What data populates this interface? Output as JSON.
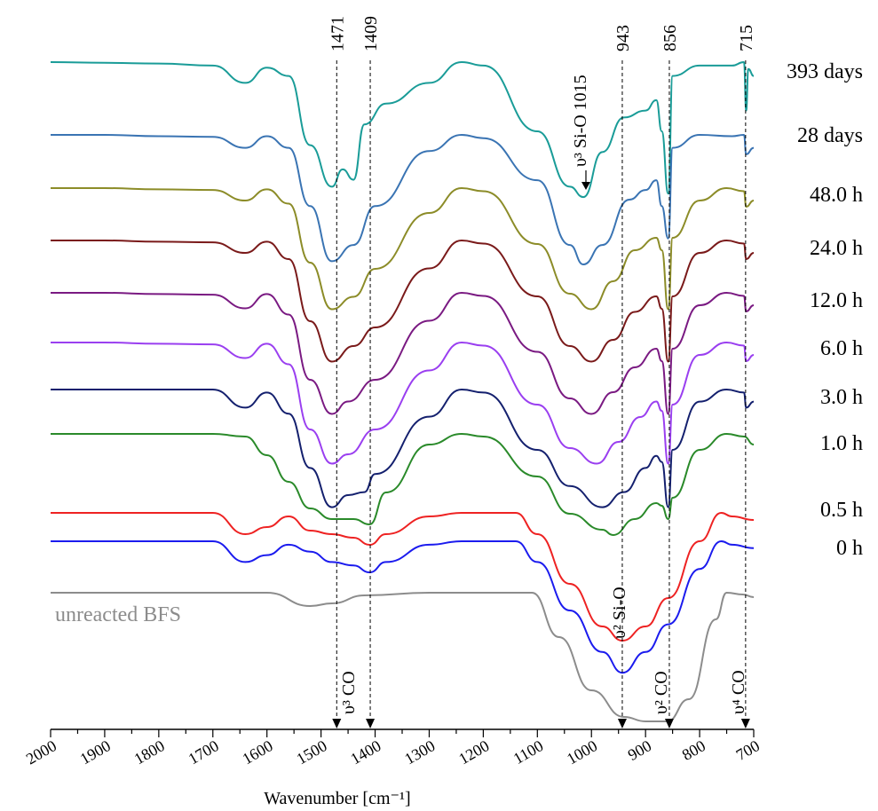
{
  "chart_data": {
    "type": "line",
    "xlabel": "Wavenumber [cm⁻¹]",
    "ylabel": "",
    "xlim": [
      2000,
      700
    ],
    "x_reversed": true,
    "x_ticks": [
      "2000",
      "1900",
      "1800",
      "1700",
      "1600",
      "1500",
      "1400",
      "1300",
      "1200",
      "1100",
      "1000",
      "900",
      "800",
      "700"
    ],
    "y_axis_shown": false,
    "series": [
      {
        "name": "393 days",
        "color": "#1a9c98",
        "points": [
          [
            2000,
            0.0
          ],
          [
            1900,
            0.01
          ],
          [
            1800,
            0.02
          ],
          [
            1700,
            0.05
          ],
          [
            1640,
            0.3
          ],
          [
            1600,
            0.08
          ],
          [
            1560,
            0.2
          ],
          [
            1520,
            1.2
          ],
          [
            1480,
            1.8
          ],
          [
            1460,
            1.55
          ],
          [
            1440,
            1.7
          ],
          [
            1420,
            0.9
          ],
          [
            1380,
            0.6
          ],
          [
            1300,
            0.3
          ],
          [
            1240,
            0.0
          ],
          [
            1200,
            0.05
          ],
          [
            1100,
            1.0
          ],
          [
            1040,
            1.8
          ],
          [
            1015,
            1.95
          ],
          [
            980,
            1.3
          ],
          [
            940,
            0.8
          ],
          [
            900,
            0.7
          ],
          [
            880,
            0.55
          ],
          [
            870,
            1.0
          ],
          [
            858,
            1.9
          ],
          [
            850,
            0.2
          ],
          [
            800,
            0.05
          ],
          [
            740,
            0.05
          ],
          [
            718,
            0.0
          ],
          [
            714,
            0.7
          ],
          [
            710,
            0.1
          ],
          [
            700,
            0.2
          ]
        ]
      },
      {
        "name": "28 days",
        "color": "#3a74b3",
        "points": [
          [
            2000,
            0.0
          ],
          [
            1900,
            0.0
          ],
          [
            1800,
            0.02
          ],
          [
            1700,
            0.03
          ],
          [
            1640,
            0.2
          ],
          [
            1600,
            0.02
          ],
          [
            1560,
            0.2
          ],
          [
            1520,
            1.1
          ],
          [
            1480,
            1.95
          ],
          [
            1440,
            1.7
          ],
          [
            1400,
            1.1
          ],
          [
            1300,
            0.25
          ],
          [
            1240,
            0.0
          ],
          [
            1200,
            0.05
          ],
          [
            1100,
            0.7
          ],
          [
            1040,
            1.7
          ],
          [
            1015,
            2.0
          ],
          [
            980,
            1.7
          ],
          [
            930,
            1.0
          ],
          [
            900,
            0.85
          ],
          [
            880,
            0.7
          ],
          [
            870,
            1.1
          ],
          [
            858,
            1.6
          ],
          [
            850,
            0.2
          ],
          [
            800,
            0.0
          ],
          [
            740,
            0.02
          ],
          [
            718,
            0.0
          ],
          [
            714,
            0.3
          ],
          [
            700,
            0.2
          ]
        ]
      },
      {
        "name": "48.0 h",
        "color": "#8c8c28",
        "points": [
          [
            2000,
            0.0
          ],
          [
            1900,
            0.0
          ],
          [
            1800,
            0.02
          ],
          [
            1700,
            0.03
          ],
          [
            1640,
            0.2
          ],
          [
            1600,
            0.02
          ],
          [
            1560,
            0.25
          ],
          [
            1520,
            1.2
          ],
          [
            1480,
            1.95
          ],
          [
            1440,
            1.75
          ],
          [
            1400,
            1.3
          ],
          [
            1300,
            0.4
          ],
          [
            1240,
            0.0
          ],
          [
            1200,
            0.05
          ],
          [
            1100,
            0.9
          ],
          [
            1040,
            1.7
          ],
          [
            1000,
            1.95
          ],
          [
            960,
            1.5
          ],
          [
            920,
            1.0
          ],
          [
            880,
            0.8
          ],
          [
            870,
            1.0
          ],
          [
            858,
            1.95
          ],
          [
            850,
            0.8
          ],
          [
            800,
            0.2
          ],
          [
            750,
            0.0
          ],
          [
            718,
            0.05
          ],
          [
            714,
            0.3
          ],
          [
            700,
            0.2
          ]
        ]
      },
      {
        "name": "24.0 h",
        "color": "#7a1a1a",
        "points": [
          [
            2000,
            0.0
          ],
          [
            1900,
            0.0
          ],
          [
            1800,
            0.02
          ],
          [
            1700,
            0.03
          ],
          [
            1640,
            0.2
          ],
          [
            1600,
            0.02
          ],
          [
            1560,
            0.3
          ],
          [
            1520,
            1.3
          ],
          [
            1480,
            1.95
          ],
          [
            1440,
            1.7
          ],
          [
            1400,
            1.4
          ],
          [
            1300,
            0.45
          ],
          [
            1240,
            0.0
          ],
          [
            1200,
            0.05
          ],
          [
            1100,
            0.9
          ],
          [
            1040,
            1.7
          ],
          [
            1000,
            1.95
          ],
          [
            960,
            1.6
          ],
          [
            920,
            1.15
          ],
          [
            880,
            0.9
          ],
          [
            870,
            1.1
          ],
          [
            858,
            1.95
          ],
          [
            850,
            0.9
          ],
          [
            800,
            0.2
          ],
          [
            750,
            0.0
          ],
          [
            718,
            0.05
          ],
          [
            714,
            0.3
          ],
          [
            700,
            0.2
          ]
        ]
      },
      {
        "name": "12.0 h",
        "color": "#7a1a82",
        "points": [
          [
            2000,
            0.0
          ],
          [
            1900,
            0.0
          ],
          [
            1800,
            0.02
          ],
          [
            1700,
            0.03
          ],
          [
            1640,
            0.25
          ],
          [
            1600,
            0.02
          ],
          [
            1560,
            0.35
          ],
          [
            1520,
            1.4
          ],
          [
            1480,
            1.95
          ],
          [
            1450,
            1.75
          ],
          [
            1400,
            1.4
          ],
          [
            1300,
            0.45
          ],
          [
            1240,
            0.0
          ],
          [
            1200,
            0.05
          ],
          [
            1100,
            0.95
          ],
          [
            1040,
            1.7
          ],
          [
            1000,
            1.95
          ],
          [
            960,
            1.6
          ],
          [
            920,
            1.2
          ],
          [
            880,
            0.9
          ],
          [
            870,
            1.1
          ],
          [
            858,
            1.95
          ],
          [
            850,
            0.9
          ],
          [
            800,
            0.2
          ],
          [
            750,
            0.0
          ],
          [
            718,
            0.05
          ],
          [
            714,
            0.3
          ],
          [
            700,
            0.2
          ]
        ]
      },
      {
        "name": "6.0 h",
        "color": "#9a3ff0",
        "points": [
          [
            2000,
            0.0
          ],
          [
            1900,
            0.0
          ],
          [
            1800,
            0.02
          ],
          [
            1700,
            0.03
          ],
          [
            1640,
            0.25
          ],
          [
            1600,
            0.02
          ],
          [
            1560,
            0.35
          ],
          [
            1520,
            1.4
          ],
          [
            1480,
            1.95
          ],
          [
            1450,
            1.8
          ],
          [
            1400,
            1.4
          ],
          [
            1300,
            0.45
          ],
          [
            1240,
            0.0
          ],
          [
            1200,
            0.05
          ],
          [
            1100,
            1.0
          ],
          [
            1040,
            1.7
          ],
          [
            990,
            1.95
          ],
          [
            950,
            1.6
          ],
          [
            910,
            1.2
          ],
          [
            880,
            0.95
          ],
          [
            870,
            1.1
          ],
          [
            858,
            1.95
          ],
          [
            850,
            1.0
          ],
          [
            800,
            0.2
          ],
          [
            750,
            0.0
          ],
          [
            718,
            0.05
          ],
          [
            714,
            0.3
          ],
          [
            700,
            0.2
          ]
        ]
      },
      {
        "name": "3.0 h",
        "color": "#14206e",
        "points": [
          [
            2000,
            0.0
          ],
          [
            1900,
            0.0
          ],
          [
            1800,
            0.0
          ],
          [
            1700,
            0.0
          ],
          [
            1640,
            0.3
          ],
          [
            1600,
            0.05
          ],
          [
            1560,
            0.4
          ],
          [
            1520,
            1.3
          ],
          [
            1480,
            1.95
          ],
          [
            1450,
            1.75
          ],
          [
            1420,
            1.7
          ],
          [
            1400,
            1.4
          ],
          [
            1300,
            0.45
          ],
          [
            1240,
            0.0
          ],
          [
            1200,
            0.05
          ],
          [
            1100,
            1.0
          ],
          [
            1040,
            1.6
          ],
          [
            980,
            1.95
          ],
          [
            940,
            1.7
          ],
          [
            900,
            1.3
          ],
          [
            880,
            1.1
          ],
          [
            870,
            1.2
          ],
          [
            858,
            1.95
          ],
          [
            850,
            1.0
          ],
          [
            800,
            0.2
          ],
          [
            750,
            0.0
          ],
          [
            718,
            0.05
          ],
          [
            714,
            0.3
          ],
          [
            700,
            0.2
          ]
        ]
      },
      {
        "name": "1.0 h",
        "color": "#2a8a2a",
        "points": [
          [
            2000,
            0.0
          ],
          [
            1900,
            0.0
          ],
          [
            1800,
            0.0
          ],
          [
            1700,
            0.0
          ],
          [
            1640,
            0.05
          ],
          [
            1600,
            0.4
          ],
          [
            1560,
            0.9
          ],
          [
            1520,
            1.4
          ],
          [
            1480,
            1.6
          ],
          [
            1440,
            1.6
          ],
          [
            1410,
            1.7
          ],
          [
            1380,
            1.1
          ],
          [
            1300,
            0.2
          ],
          [
            1240,
            0.0
          ],
          [
            1200,
            0.05
          ],
          [
            1100,
            0.8
          ],
          [
            1040,
            1.5
          ],
          [
            980,
            1.8
          ],
          [
            960,
            1.9
          ],
          [
            920,
            1.6
          ],
          [
            880,
            1.3
          ],
          [
            870,
            1.35
          ],
          [
            858,
            1.6
          ],
          [
            850,
            1.2
          ],
          [
            800,
            0.3
          ],
          [
            750,
            0.0
          ],
          [
            718,
            0.05
          ],
          [
            700,
            0.2
          ]
        ]
      },
      {
        "name": "0.5 h",
        "color": "#ee2222",
        "points": [
          [
            2000,
            0.0
          ],
          [
            1900,
            0.0
          ],
          [
            1800,
            0.0
          ],
          [
            1700,
            0.0
          ],
          [
            1640,
            0.3
          ],
          [
            1600,
            0.2
          ],
          [
            1560,
            0.05
          ],
          [
            1520,
            0.25
          ],
          [
            1480,
            0.3
          ],
          [
            1440,
            0.35
          ],
          [
            1410,
            0.45
          ],
          [
            1380,
            0.3
          ],
          [
            1300,
            0.05
          ],
          [
            1240,
            0.0
          ],
          [
            1140,
            0.0
          ],
          [
            1100,
            0.3
          ],
          [
            1040,
            1.0
          ],
          [
            980,
            1.6
          ],
          [
            943,
            1.8
          ],
          [
            900,
            1.6
          ],
          [
            858,
            1.2
          ],
          [
            800,
            0.4
          ],
          [
            760,
            0.0
          ],
          [
            740,
            0.05
          ],
          [
            700,
            0.1
          ]
        ]
      },
      {
        "name": "0 h",
        "color": "#1b1bee",
        "points": [
          [
            2000,
            0.0
          ],
          [
            1900,
            0.0
          ],
          [
            1800,
            0.0
          ],
          [
            1700,
            0.0
          ],
          [
            1640,
            0.3
          ],
          [
            1600,
            0.2
          ],
          [
            1560,
            0.05
          ],
          [
            1520,
            0.15
          ],
          [
            1480,
            0.3
          ],
          [
            1440,
            0.35
          ],
          [
            1410,
            0.45
          ],
          [
            1380,
            0.3
          ],
          [
            1300,
            0.05
          ],
          [
            1240,
            0.0
          ],
          [
            1140,
            0.0
          ],
          [
            1100,
            0.3
          ],
          [
            1040,
            1.0
          ],
          [
            980,
            1.6
          ],
          [
            943,
            1.9
          ],
          [
            900,
            1.6
          ],
          [
            858,
            1.2
          ],
          [
            800,
            0.4
          ],
          [
            760,
            0.0
          ],
          [
            740,
            0.05
          ],
          [
            700,
            0.1
          ]
        ]
      },
      {
        "name": "unreacted BFS",
        "color": "#8c8c8c",
        "points": [
          [
            2000,
            0.0
          ],
          [
            1900,
            0.0
          ],
          [
            1800,
            0.0
          ],
          [
            1700,
            0.0
          ],
          [
            1600,
            0.0
          ],
          [
            1520,
            0.15
          ],
          [
            1480,
            0.12
          ],
          [
            1420,
            0.03
          ],
          [
            1300,
            0.0
          ],
          [
            1200,
            0.0
          ],
          [
            1110,
            0.0
          ],
          [
            1060,
            0.5
          ],
          [
            1000,
            1.1
          ],
          [
            940,
            1.4
          ],
          [
            900,
            1.45
          ],
          [
            860,
            1.45
          ],
          [
            820,
            1.2
          ],
          [
            770,
            0.3
          ],
          [
            750,
            0.0
          ],
          [
            720,
            0.02
          ],
          [
            700,
            0.05
          ]
        ]
      }
    ],
    "peak_markers": [
      {
        "label": "1471",
        "x": 1471
      },
      {
        "label": "1409",
        "x": 1409
      },
      {
        "label": "943",
        "x": 943
      },
      {
        "label": "856",
        "x": 856
      },
      {
        "label": "715",
        "x": 715
      }
    ],
    "annotations": {
      "si_o_v3": "υ³ Si-O  1015",
      "si_o_v2": "υ² Si-O",
      "co_v3": "υ³ CO",
      "co_v2": "υ² CO",
      "co_v4": "υ⁴ CO"
    }
  }
}
